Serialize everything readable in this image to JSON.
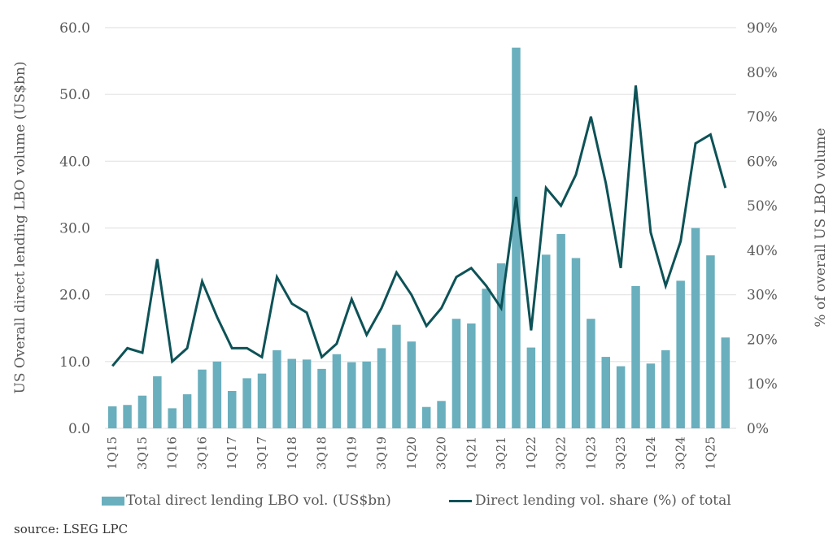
{
  "chart_data": {
    "type": "bar",
    "title": "",
    "categories": [
      "1Q15",
      "2Q15",
      "3Q15",
      "4Q15",
      "1Q16",
      "2Q16",
      "3Q16",
      "4Q16",
      "1Q17",
      "2Q17",
      "3Q17",
      "4Q17",
      "1Q18",
      "2Q18",
      "3Q18",
      "4Q18",
      "1Q19",
      "2Q19",
      "3Q19",
      "4Q19",
      "1Q20",
      "2Q20",
      "3Q20",
      "4Q20",
      "1Q21",
      "2Q21",
      "3Q21",
      "4Q21",
      "1Q22",
      "2Q22",
      "3Q22",
      "4Q22",
      "1Q23",
      "2Q23",
      "3Q23",
      "4Q23",
      "1Q24",
      "2Q24",
      "3Q24",
      "4Q24",
      "1Q25",
      "2Q25"
    ],
    "x_tick_labels": [
      "1Q15",
      "3Q15",
      "1Q16",
      "3Q16",
      "1Q17",
      "3Q17",
      "1Q18",
      "3Q18",
      "1Q19",
      "3Q19",
      "1Q20",
      "3Q20",
      "1Q21",
      "3Q21",
      "1Q22",
      "3Q22",
      "1Q23",
      "3Q23",
      "1Q24",
      "3Q24",
      "1Q25"
    ],
    "series": [
      {
        "name": "Total direct lending LBO vol. (US$bn)",
        "type": "bar",
        "axis": "left",
        "color": "#6aafbd",
        "values": [
          3.3,
          3.5,
          4.9,
          7.8,
          3.0,
          5.1,
          8.8,
          10.0,
          5.6,
          7.5,
          8.2,
          11.7,
          10.4,
          10.3,
          8.9,
          11.1,
          9.9,
          10.0,
          12.0,
          15.5,
          13.0,
          3.2,
          4.1,
          16.4,
          15.7,
          20.9,
          24.7,
          57.0,
          12.1,
          26.0,
          29.1,
          25.5,
          16.4,
          10.7,
          9.3,
          21.3,
          9.7,
          11.7,
          22.1,
          30.0,
          25.9,
          13.6
        ]
      },
      {
        "name": "Direct lending vol. share (%) of total",
        "type": "line",
        "axis": "right",
        "color": "#0d5257",
        "values": [
          14,
          18,
          17,
          38,
          15,
          18,
          33,
          25,
          18,
          18,
          16,
          34,
          28,
          26,
          16,
          19,
          29,
          21,
          27,
          35,
          30,
          23,
          27,
          34,
          36,
          32,
          27,
          52,
          22,
          54,
          50,
          57,
          70,
          55,
          36,
          77,
          44,
          32,
          42,
          64,
          66,
          54
        ]
      }
    ],
    "ylabel": "US Overall direct lending LBO volume (US$bn)",
    "ylim": [
      0,
      60
    ],
    "yticks": [
      "0.0",
      "10.0",
      "20.0",
      "30.0",
      "40.0",
      "50.0",
      "60.0"
    ],
    "y2label": "% of overall US LBO volume",
    "y2lim": [
      0,
      90
    ],
    "y2ticks": [
      "0%",
      "10%",
      "20%",
      "30%",
      "40%",
      "50%",
      "60%",
      "70%",
      "80%",
      "90%"
    ],
    "grid": true,
    "legend_position": "bottom"
  },
  "legend": {
    "bar_label": "Total direct lending LBO vol. (US$bn)",
    "line_label": "Direct lending vol. share (%) of total"
  },
  "source": "source:  LSEG LPC"
}
